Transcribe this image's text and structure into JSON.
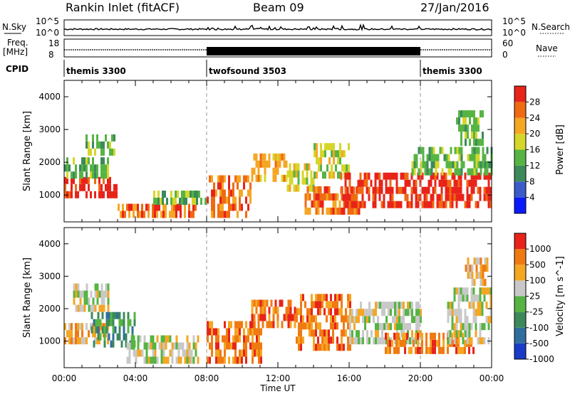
{
  "header": {
    "site": "Rankin Inlet (fitACF)",
    "beam": "Beam 09",
    "date": "27/Jan/2016"
  },
  "strips": {
    "nsky_label": "N.Sky",
    "nsearch_label": "N.Search",
    "nsky_ticks": [
      "10^5",
      "10^0"
    ],
    "nsearch_ticks": [
      "10^5",
      "10^0"
    ],
    "freq_label": "Freq.",
    "freq_unit": "[MHz]",
    "freq_ticks": [
      "18",
      "8"
    ],
    "nave_label": "Nave",
    "nave_ticks": [
      "60",
      "0"
    ],
    "cpid_label": "CPID",
    "cpid_segments": [
      {
        "label": "themis 3300",
        "start": 0,
        "end": 8
      },
      {
        "label": "twofsound 3503",
        "start": 8,
        "end": 20
      },
      {
        "label": "themis 3300",
        "start": 20,
        "end": 24
      }
    ]
  },
  "chart_data": [
    {
      "type": "heatmap",
      "title": "",
      "ylabel": "Slant Range [km]",
      "xlabel": "",
      "x_range": [
        0,
        24
      ],
      "ylim": [
        180,
        4500
      ],
      "yticks": [
        1000,
        2000,
        3000,
        4000
      ],
      "colorbar": {
        "label": "Power [dB]",
        "ticks": [
          "4",
          "8",
          "12",
          "16",
          "20",
          "24",
          "28"
        ],
        "colors": [
          "#0a1aff",
          "#3a5bc8",
          "#3c8a5a",
          "#56b443",
          "#d6d62a",
          "#f5a623",
          "#f06a12",
          "#e8231a"
        ]
      },
      "regions": [
        {
          "t0": 0.0,
          "t1": 3.0,
          "r0": 900,
          "r1": 1500,
          "level": 7
        },
        {
          "t0": 0.0,
          "t1": 2.5,
          "r0": 1500,
          "r1": 2100,
          "level": 3
        },
        {
          "t0": 1.2,
          "t1": 2.8,
          "r0": 2200,
          "r1": 2700,
          "level": 3
        },
        {
          "t0": 3.0,
          "t1": 7.5,
          "r0": 300,
          "r1": 700,
          "level": 6
        },
        {
          "t0": 5.0,
          "t1": 8.0,
          "r0": 700,
          "r1": 1100,
          "level": 3
        },
        {
          "t0": 8.0,
          "t1": 10.5,
          "r0": 300,
          "r1": 1500,
          "level": 6
        },
        {
          "t0": 10.5,
          "t1": 12.5,
          "r0": 1400,
          "r1": 2100,
          "level": 5
        },
        {
          "t0": 12.5,
          "t1": 14.0,
          "r0": 1100,
          "r1": 1800,
          "level": 4
        },
        {
          "t0": 13.5,
          "t1": 16.5,
          "r0": 400,
          "r1": 1100,
          "level": 6
        },
        {
          "t0": 14.0,
          "t1": 16.0,
          "r0": 1500,
          "r1": 2400,
          "level": 4
        },
        {
          "t0": 15.5,
          "t1": 24.0,
          "r0": 600,
          "r1": 1600,
          "level": 7
        },
        {
          "t0": 19.5,
          "t1": 24.0,
          "r0": 1600,
          "r1": 2400,
          "level": 3
        },
        {
          "t0": 22.0,
          "t1": 23.5,
          "r0": 2500,
          "r1": 3400,
          "level": 3
        }
      ]
    },
    {
      "type": "heatmap",
      "title": "",
      "ylabel": "Slant Range [km]",
      "xlabel": "Time UT",
      "x_range": [
        0,
        24
      ],
      "ylim": [
        180,
        4500
      ],
      "yticks": [
        1000,
        2000,
        3000,
        4000
      ],
      "xticks": [
        "00:00",
        "04:00",
        "08:00",
        "12:00",
        "16:00",
        "20:00",
        "00:00"
      ],
      "colorbar": {
        "label": "Velocity [m s^-1]",
        "ticks": [
          "1000",
          "500",
          "100",
          "25",
          "-25",
          "-100",
          "-500",
          "-1000"
        ],
        "colors": [
          "#1a3ac8",
          "#2e6e9e",
          "#3c8a5a",
          "#56b443",
          "#c8c8c8",
          "#f5a623",
          "#f07a12",
          "#e8231a"
        ]
      },
      "regions": [
        {
          "t0": 0.0,
          "t1": 2.5,
          "r0": 900,
          "r1": 1500,
          "level": 5
        },
        {
          "t0": 1.5,
          "t1": 4.0,
          "r0": 800,
          "r1": 1700,
          "level": 2
        },
        {
          "t0": 0.5,
          "t1": 2.5,
          "r0": 1900,
          "r1": 2700,
          "level": 4
        },
        {
          "t0": 3.5,
          "t1": 7.5,
          "r0": 300,
          "r1": 1000,
          "level": 4
        },
        {
          "t0": 8.0,
          "t1": 11.0,
          "r0": 300,
          "r1": 1400,
          "level": 6
        },
        {
          "t0": 10.5,
          "t1": 13.0,
          "r0": 1400,
          "r1": 2100,
          "level": 6
        },
        {
          "t0": 13.0,
          "t1": 16.0,
          "r0": 700,
          "r1": 2400,
          "level": 6
        },
        {
          "t0": 16.0,
          "t1": 20.0,
          "r0": 900,
          "r1": 2200,
          "level": 4
        },
        {
          "t0": 18.0,
          "t1": 23.0,
          "r0": 600,
          "r1": 1200,
          "level": 6
        },
        {
          "t0": 21.5,
          "t1": 24.0,
          "r0": 900,
          "r1": 2500,
          "level": 4
        },
        {
          "t0": 22.5,
          "t1": 23.8,
          "r0": 2700,
          "r1": 3400,
          "level": 5
        }
      ]
    }
  ]
}
